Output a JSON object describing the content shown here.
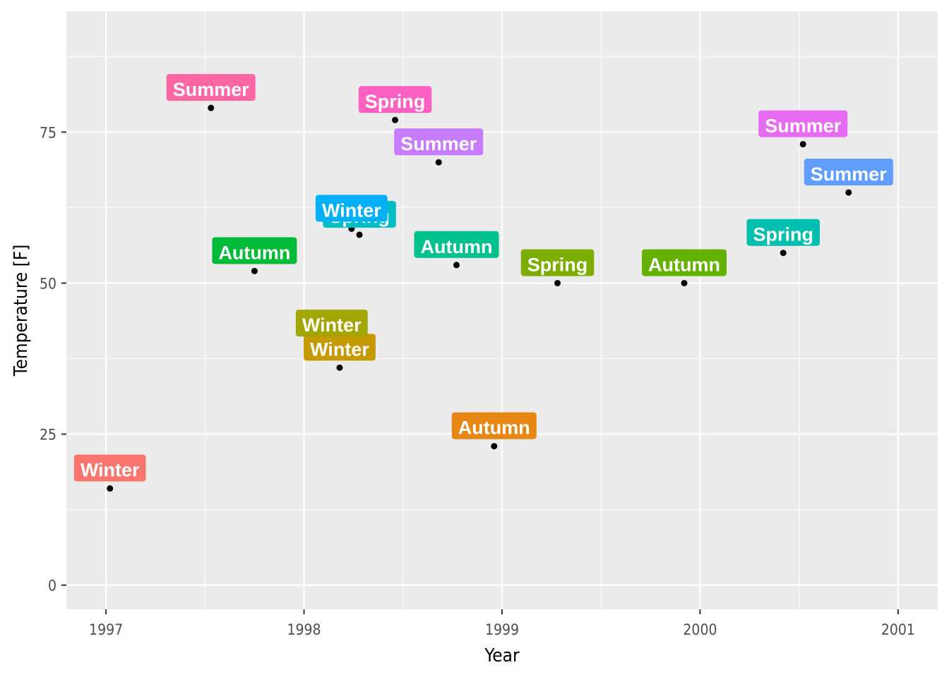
{
  "chart_data": {
    "type": "scatter",
    "title": "",
    "xlabel": "Year",
    "ylabel": "Temperature [F]",
    "xlim": [
      1996.8,
      2001.2
    ],
    "ylim": [
      -4,
      95
    ],
    "x_ticks": [
      1997,
      1998,
      1999,
      2000,
      2001
    ],
    "y_ticks": [
      0,
      25,
      50,
      75
    ],
    "grid": true,
    "legend": "none",
    "points": [
      {
        "x": 1997.02,
        "y": 16,
        "label": "Winter",
        "color": "#F8766D"
      },
      {
        "x": 1997.53,
        "y": 79,
        "label": "Summer",
        "color": "#FF67A4"
      },
      {
        "x": 1997.75,
        "y": 52,
        "label": "Autumn",
        "color": "#00BA38"
      },
      {
        "x": 1998.18,
        "y": 36,
        "label": "Winter",
        "color": "#C49A00"
      },
      {
        "x": 1998.28,
        "y": 58,
        "label": "Spring",
        "color": "#00BFC4"
      },
      {
        "x": 1998.24,
        "y": 59,
        "label": "Winter",
        "color": "#00B0F6"
      },
      {
        "x": 1998.46,
        "y": 77,
        "label": "Spring",
        "color": "#FF61C3"
      },
      {
        "x": 1998.68,
        "y": 70,
        "label": "Summer",
        "color": "#C77CFF"
      },
      {
        "x": 1998.77,
        "y": 53,
        "label": "Autumn",
        "color": "#00C08B"
      },
      {
        "x": 1998.96,
        "y": 23,
        "label": "Autumn",
        "color": "#E68613"
      },
      {
        "x": 1999.28,
        "y": 50,
        "label": "Spring",
        "color": "#7CAE00"
      },
      {
        "x": 1999.92,
        "y": 50,
        "label": "Autumn",
        "color": "#64B200"
      },
      {
        "x": 2000.42,
        "y": 55,
        "label": "Spring",
        "color": "#00BFAE"
      },
      {
        "x": 2000.52,
        "y": 73,
        "label": "Summer",
        "color": "#E76BF3"
      },
      {
        "x": 2000.75,
        "y": 65,
        "label": "Summer",
        "color": "#619CFF"
      },
      {
        "x": 1998.14,
        "y": 40,
        "label": "Winter",
        "color": "#A3A500"
      }
    ]
  }
}
